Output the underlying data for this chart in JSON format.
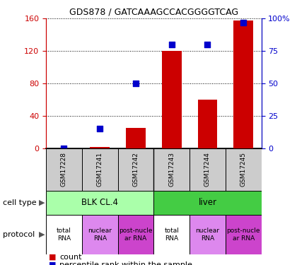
{
  "title": "GDS878 / GATCAAAGCCACGGGGTCAG",
  "samples": [
    "GSM17228",
    "GSM17241",
    "GSM17242",
    "GSM17243",
    "GSM17244",
    "GSM17245"
  ],
  "counts": [
    0,
    2,
    25,
    120,
    60,
    158
  ],
  "percentiles": [
    0,
    15,
    50,
    80,
    80,
    97
  ],
  "ylim_left": [
    0,
    160
  ],
  "ylim_right": [
    0,
    100
  ],
  "yticks_left": [
    0,
    40,
    80,
    120,
    160
  ],
  "yticks_right": [
    0,
    25,
    50,
    75,
    100
  ],
  "ytick_labels_left": [
    "0",
    "40",
    "80",
    "120",
    "160"
  ],
  "ytick_labels_right": [
    "0",
    "25",
    "50",
    "75",
    "100%"
  ],
  "bar_color": "#cc0000",
  "dot_color": "#0000cc",
  "cell_types": [
    {
      "label": "BLK CL.4",
      "span": [
        0,
        3
      ],
      "color": "#aaffaa"
    },
    {
      "label": "liver",
      "span": [
        3,
        6
      ],
      "color": "#44cc44"
    }
  ],
  "proto_colors": [
    "#ffffff",
    "#dd88ee",
    "#cc44cc",
    "#ffffff",
    "#dd88ee",
    "#cc44cc"
  ],
  "proto_labels": [
    "total\nRNA",
    "nuclear\nRNA",
    "post-nucle\nar RNA",
    "total\nRNA",
    "nuclear\nRNA",
    "post-nucle\nar RNA"
  ],
  "sample_box_color": "#cccccc",
  "left_axis_color": "#cc0000",
  "right_axis_color": "#0000cc",
  "legend_items": [
    {
      "color": "#cc0000",
      "label": "count"
    },
    {
      "color": "#0000cc",
      "label": "percentile rank within the sample"
    }
  ]
}
